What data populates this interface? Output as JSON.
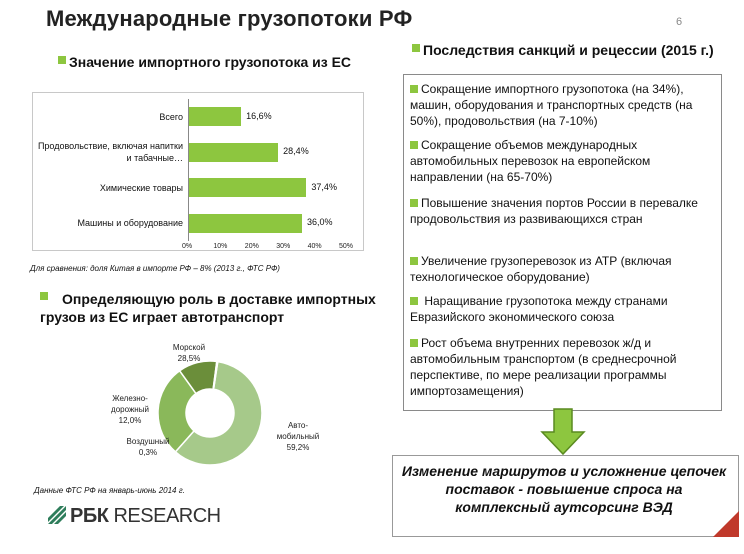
{
  "title": "Международные грузопотоки РФ",
  "page_number": "6",
  "left_section": {
    "heading": "Значение импортного грузопотока из ЕС",
    "comparison_note": "Для сравнения: доля Китая в импорте РФ – 8% (2013 г., ФТС РФ)"
  },
  "chart_data": [
    {
      "type": "bar",
      "orientation": "horizontal",
      "categories": [
        "Всего",
        "Продовольствие, включая напитки и табачные…",
        "Химические товары",
        "Машины и оборудование"
      ],
      "values": [
        16.6,
        28.4,
        37.4,
        36.0
      ],
      "value_labels": [
        "16,6%",
        "28,4%",
        "37,4%",
        "36,0%"
      ],
      "xticks": [
        "0%",
        "10%",
        "20%",
        "30%",
        "40%",
        "50%"
      ],
      "xlim": [
        0,
        50
      ],
      "color": "#8dc63f"
    },
    {
      "type": "pie",
      "donut": true,
      "slices": [
        {
          "name": "Авто-мобильный",
          "value": 59.2,
          "label": "59,2%",
          "color": "#a6c98a"
        },
        {
          "name": "Морской",
          "value": 28.5,
          "label": "28,5%",
          "color": "#8ab85a"
        },
        {
          "name": "Железно-дорожный",
          "value": 12.0,
          "label": "12,0%",
          "color": "#6b8e3a"
        },
        {
          "name": "Воздушный",
          "value": 0.3,
          "label": "0,3%",
          "color": "#4e6b25"
        }
      ]
    }
  ],
  "pie_section": {
    "heading": "Определяющую роль в доставке импортных грузов из ЕС играет автотранспорт",
    "labels": {
      "sea_name": "Морской",
      "sea_value": "28,5%",
      "rail_name1": "Железно-",
      "rail_name2": "дорожный",
      "rail_value": "12,0%",
      "air_name": "Воздушный",
      "air_value": "0,3%",
      "auto_name1": "Авто-",
      "auto_name2": "мобильный",
      "auto_value": "59,2%"
    },
    "source_note": "Данные ФТС РФ на январь-июнь 2014 г."
  },
  "logo": {
    "part1": "РБК",
    "part2": " RESEARCH"
  },
  "right_section": {
    "heading": "Последствия санкций и рецессии (2015 г.)",
    "items": [
      "Сокращение импортного грузопотока (на 34%), машин, оборудования и транспортных средств (на 50%),  продовольствия (на 7-10%)",
      "Сокращение объемов международных автомобильных перевозок на европейском направлении (на 65-70%)",
      "Повышение значения портов России в перевалке продовольствия из развивающихся стран",
      "Увеличение грузоперевозок из АТР (включая технологическое оборудование)",
      " Наращивание грузопотока между странами Евразийского экономического союза",
      "Рост объема внутренних перевозок ж/д и автомобильным транспортом (в среднесрочной перспективе, по мере реализации программы импортозамещения)"
    ],
    "conclusion": "Изменение маршрутов и усложнение цепочек поставок - повышение спроса на комплексный аутсорсинг ВЭД"
  },
  "colors": {
    "accent_green": "#8dc63f",
    "arrow_green": "#8dc63f",
    "corner_red": "#c0392b"
  }
}
